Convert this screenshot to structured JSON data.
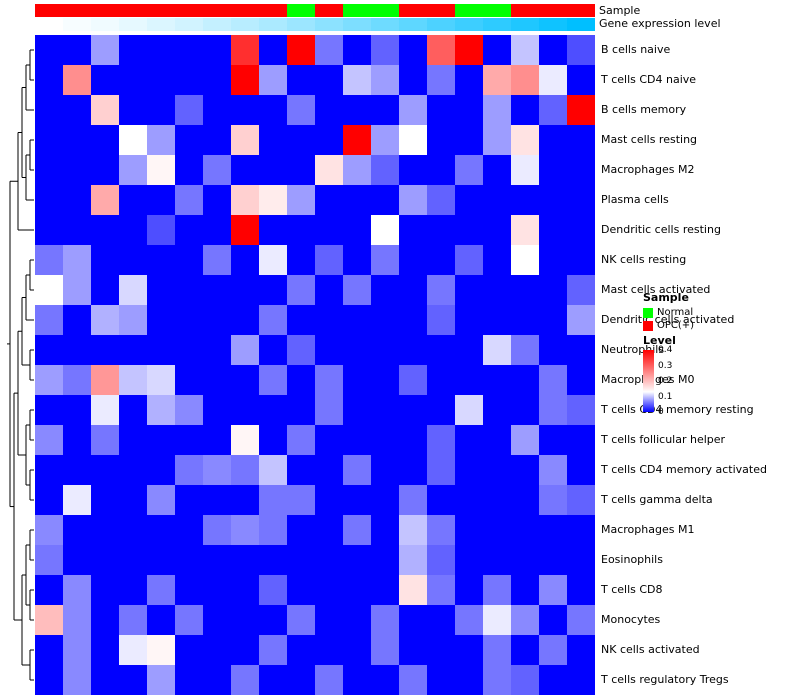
{
  "header": {
    "sample_annotation_label": "Sample",
    "expression_annotation_label": "Gene expression level"
  },
  "legend_sample": {
    "title": "Sample",
    "items": [
      {
        "label": "Normal",
        "color": "#00FF00"
      },
      {
        "label": "OPC(+)",
        "color": "#FF0000"
      }
    ]
  },
  "legend_level": {
    "title": "Level",
    "ticks": [
      "0.4",
      "0.3",
      "0.2",
      "0.1",
      "0"
    ]
  },
  "chart_data": {
    "type": "heatmap",
    "title": "",
    "legend_position": "right",
    "row_dendrogram": true,
    "rows": [
      "B cells naive",
      "T cells CD4 naive",
      "B cells memory",
      "Mast cells resting",
      "Macrophages M2",
      "Plasma cells",
      "Dendritic cells resting",
      "NK cells resting",
      "Mast cells activated",
      "Dendritic cells activated",
      "Neutrophils",
      "Macrophages M0",
      "T cells CD4 memory resting",
      "T cells follicular helper",
      "T cells CD4 memory activated",
      "T cells gamma delta",
      "Macrophages M1",
      "Eosinophils",
      "T cells CD8",
      "Monocytes",
      "NK cells activated",
      "T cells regulatory Tregs"
    ],
    "n_columns": 20,
    "value_range": [
      0,
      0.4
    ],
    "color_scale": {
      "low": "#0000FF",
      "mid": "#FFFFFF",
      "high": "#FF0000",
      "midpoint": 0.13
    },
    "values": [
      [
        0,
        0,
        0.08,
        0,
        0,
        0,
        0,
        0.35,
        0,
        0.4,
        0.06,
        0,
        0.05,
        0,
        0.3,
        0.4,
        0,
        0.1,
        0,
        0.04
      ],
      [
        0,
        0.25,
        0,
        0,
        0,
        0,
        0,
        0.4,
        0.08,
        0,
        0,
        0.1,
        0.08,
        0,
        0.06,
        0,
        0.22,
        0.25,
        0.12,
        0
      ],
      [
        0,
        0,
        0.18,
        0,
        0,
        0.05,
        0,
        0,
        0,
        0.06,
        0,
        0,
        0,
        0.08,
        0,
        0,
        0.08,
        0,
        0.05,
        0.4
      ],
      [
        0,
        0,
        0,
        0.13,
        0.08,
        0,
        0,
        0.18,
        0,
        0,
        0,
        0.4,
        0.08,
        0.13,
        0,
        0,
        0.08,
        0.16,
        0,
        0
      ],
      [
        0,
        0,
        0,
        0.08,
        0.14,
        0,
        0.06,
        0,
        0,
        0,
        0.16,
        0.08,
        0.05,
        0,
        0,
        0.06,
        0,
        0.12,
        0,
        0
      ],
      [
        0,
        0,
        0.22,
        0,
        0,
        0.06,
        0,
        0.18,
        0.15,
        0.08,
        0,
        0,
        0,
        0.08,
        0.05,
        0,
        0,
        0,
        0,
        0
      ],
      [
        0,
        0,
        0,
        0,
        0.04,
        0,
        0,
        0.4,
        0,
        0,
        0,
        0,
        0.13,
        0,
        0,
        0,
        0,
        0.16,
        0,
        0
      ],
      [
        0.06,
        0.08,
        0,
        0,
        0,
        0,
        0.06,
        0,
        0.12,
        0,
        0.05,
        0,
        0.06,
        0,
        0,
        0.05,
        0,
        0.13,
        0,
        0
      ],
      [
        0.13,
        0.08,
        0,
        0.11,
        0,
        0,
        0,
        0,
        0,
        0.06,
        0,
        0.06,
        0,
        0,
        0.06,
        0,
        0,
        0,
        0,
        0.05
      ],
      [
        0.06,
        0,
        0.09,
        0.08,
        0,
        0,
        0,
        0,
        0.06,
        0,
        0,
        0,
        0,
        0,
        0.05,
        0,
        0,
        0,
        0,
        0.08
      ],
      [
        0,
        0,
        0,
        0,
        0,
        0,
        0,
        0.08,
        0,
        0.05,
        0,
        0,
        0,
        0,
        0,
        0,
        0.11,
        0.06,
        0,
        0
      ],
      [
        0.08,
        0.06,
        0.24,
        0.1,
        0.11,
        0,
        0,
        0,
        0.06,
        0,
        0.06,
        0,
        0,
        0.05,
        0,
        0,
        0,
        0,
        0.06,
        0
      ],
      [
        0,
        0,
        0.12,
        0,
        0.09,
        0.07,
        0,
        0,
        0,
        0,
        0.06,
        0,
        0,
        0,
        0,
        0.11,
        0,
        0,
        0.06,
        0.05
      ],
      [
        0.07,
        0,
        0.06,
        0,
        0,
        0,
        0,
        0.14,
        0,
        0.06,
        0,
        0,
        0,
        0,
        0.05,
        0,
        0,
        0.08,
        0,
        0
      ],
      [
        0,
        0,
        0,
        0,
        0,
        0.06,
        0.07,
        0.06,
        0.1,
        0,
        0,
        0.06,
        0,
        0,
        0.05,
        0,
        0,
        0,
        0.07,
        0
      ],
      [
        0,
        0.12,
        0,
        0,
        0.07,
        0,
        0,
        0,
        0.06,
        0.06,
        0,
        0,
        0,
        0.06,
        0,
        0,
        0,
        0,
        0.06,
        0.05
      ],
      [
        0.07,
        0,
        0,
        0,
        0,
        0,
        0.06,
        0.07,
        0.06,
        0,
        0,
        0.06,
        0,
        0.1,
        0.06,
        0,
        0,
        0,
        0,
        0
      ],
      [
        0.06,
        0,
        0,
        0,
        0,
        0,
        0,
        0,
        0,
        0,
        0,
        0,
        0,
        0.09,
        0.05,
        0,
        0,
        0,
        0,
        0
      ],
      [
        0,
        0.07,
        0,
        0,
        0.06,
        0,
        0,
        0,
        0.05,
        0,
        0,
        0,
        0,
        0.16,
        0.06,
        0,
        0.06,
        0,
        0.07,
        0
      ],
      [
        0.2,
        0.07,
        0,
        0.06,
        0,
        0.06,
        0,
        0,
        0,
        0.06,
        0,
        0,
        0.06,
        0,
        0,
        0.06,
        0.12,
        0.07,
        0,
        0.06
      ],
      [
        0,
        0.07,
        0,
        0.12,
        0.14,
        0,
        0,
        0,
        0.06,
        0,
        0,
        0,
        0.06,
        0,
        0,
        0,
        0.06,
        0,
        0.06,
        0
      ],
      [
        0,
        0.07,
        0,
        0,
        0.08,
        0,
        0,
        0.06,
        0,
        0,
        0.06,
        0,
        0,
        0.06,
        0,
        0,
        0.06,
        0.05,
        0,
        0
      ]
    ],
    "column_sample_group": [
      "OPC(+)",
      "OPC(+)",
      "OPC(+)",
      "OPC(+)",
      "OPC(+)",
      "OPC(+)",
      "OPC(+)",
      "OPC(+)",
      "OPC(+)",
      "Normal",
      "OPC(+)",
      "Normal",
      "Normal",
      "OPC(+)",
      "OPC(+)",
      "Normal",
      "Normal",
      "OPC(+)",
      "OPC(+)",
      "OPC(+)"
    ],
    "sample_group_colors": {
      "Normal": "#00FF00",
      "OPC(+)": "#FF0000"
    },
    "column_gene_expression": [
      0.0,
      0.03,
      0.06,
      0.1,
      0.14,
      0.18,
      0.23,
      0.28,
      0.33,
      0.39,
      0.45,
      0.51,
      0.57,
      0.63,
      0.7,
      0.76,
      0.82,
      0.88,
      0.94,
      1.0
    ],
    "expression_scale": {
      "low": "#FFFFFF",
      "high": "#00BFFF"
    }
  }
}
